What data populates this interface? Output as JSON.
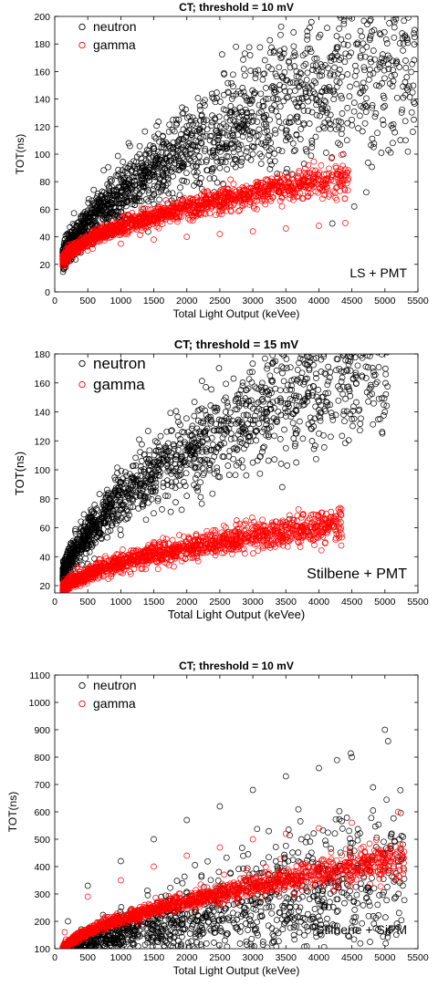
{
  "chart_data": [
    {
      "type": "scatter",
      "title": "CT; threshold = 10 mV",
      "xlabel": "Total Light Output (keVee)",
      "ylabel": "TOT(ns)",
      "annotation": "LS + PMT",
      "xlim": [
        0,
        5500
      ],
      "ylim": [
        0,
        200
      ],
      "xticks": [
        0,
        500,
        1000,
        1500,
        2000,
        2500,
        3000,
        3500,
        4000,
        4500,
        5000,
        5500
      ],
      "yticks": [
        0,
        20,
        40,
        60,
        80,
        100,
        120,
        140,
        160,
        180,
        200
      ],
      "legend_position": "top-left",
      "series": [
        {
          "name": "neutron",
          "color": "#000000",
          "marker": "circle",
          "trend": {
            "a": 2.2,
            "b": 0.5,
            "c": 2.2,
            "xmax": 5450
          },
          "spread": {
            "base": 4,
            "scale": 0.006
          },
          "count": 1700,
          "samples": [
            [
              200,
              28
            ],
            [
              500,
              42
            ],
            [
              1000,
              58
            ],
            [
              1500,
              70
            ],
            [
              2000,
              80
            ],
            [
              2500,
              90
            ],
            [
              3000,
              100
            ],
            [
              3500,
              110
            ],
            [
              4000,
              118
            ],
            [
              4500,
              125
            ],
            [
              5000,
              135
            ],
            [
              5450,
              185
            ]
          ]
        },
        {
          "name": "gamma",
          "color": "#ff0000",
          "marker": "circle",
          "trend": {
            "a": 5.5,
            "b": 0.3,
            "c": 3.5,
            "xmax": 4450
          },
          "spread": {
            "base": 2,
            "scale": 0.001
          },
          "count": 1500,
          "samples": [
            [
              150,
              20
            ],
            [
              500,
              30
            ],
            [
              1000,
              35
            ],
            [
              1500,
              38
            ],
            [
              2000,
              40
            ],
            [
              2500,
              42
            ],
            [
              3000,
              44
            ],
            [
              3500,
              46
            ],
            [
              4000,
              48
            ],
            [
              4400,
              50
            ]
          ]
        }
      ]
    },
    {
      "type": "scatter",
      "title": "CT; threshold = 15 mV",
      "xlabel": "Total Light Output (keVee)",
      "ylabel": "TOT(ns)",
      "annotation": "Stilbene + PMT",
      "xlim": [
        0,
        5500
      ],
      "ylim": [
        15,
        180
      ],
      "xticks": [
        0,
        500,
        1000,
        1500,
        2000,
        2500,
        3000,
        3500,
        4000,
        4500,
        5000,
        5500
      ],
      "yticks": [
        20,
        40,
        60,
        80,
        100,
        120,
        140,
        160,
        180
      ],
      "legend_position": "top-left",
      "series": [
        {
          "name": "neutron",
          "color": "#000000",
          "marker": "circle",
          "trend": {
            "a": 2.5,
            "b": 0.5,
            "c": 0.9,
            "xmax": 5050
          },
          "spread": {
            "base": 4,
            "scale": 0.005
          },
          "count": 1500,
          "samples": [
            [
              200,
              22
            ],
            [
              500,
              35
            ],
            [
              1000,
              55
            ],
            [
              1500,
              70
            ],
            [
              2000,
              82
            ],
            [
              2500,
              95
            ],
            [
              3000,
              105
            ],
            [
              3500,
              115
            ],
            [
              4000,
              125
            ],
            [
              4500,
              135
            ],
            [
              5000,
              140
            ]
          ]
        },
        {
          "name": "gamma",
          "color": "#ff0000",
          "marker": "circle",
          "trend": {
            "a": 4.2,
            "b": 0.3,
            "c": 2.5,
            "xmax": 4350
          },
          "spread": {
            "base": 2,
            "scale": 0.001
          },
          "count": 1400,
          "samples": [
            [
              150,
              18
            ],
            [
              500,
              30
            ],
            [
              1000,
              38
            ],
            [
              1500,
              42
            ],
            [
              2000,
              45
            ],
            [
              2500,
              48
            ],
            [
              3000,
              50
            ],
            [
              3500,
              52
            ],
            [
              4000,
              55
            ],
            [
              4300,
              60
            ]
          ]
        }
      ]
    },
    {
      "type": "scatter",
      "title": "CT; threshold = 10 mV",
      "xlabel": "Total Light Output (keVee)",
      "ylabel": "TOT(ns)",
      "annotation": "Stilbene + SiPM",
      "xlim": [
        0,
        5500
      ],
      "ylim": [
        100,
        1100
      ],
      "xticks": [
        0,
        500,
        1000,
        1500,
        2000,
        2500,
        3000,
        3500,
        4000,
        4500,
        5000,
        5500
      ],
      "yticks": [
        100,
        200,
        300,
        400,
        500,
        600,
        700,
        800,
        900,
        1000,
        1100
      ],
      "legend_position": "top-left",
      "series": [
        {
          "name": "neutron",
          "color": "#000000",
          "marker": "circle",
          "trend": {
            "a": 15,
            "b": 0.3,
            "c": 30,
            "xmax": 5300
          },
          "spread": {
            "base": 10,
            "scale": 0.03
          },
          "count": 1400,
          "samples": [
            [
              200,
              200
            ],
            [
              500,
              330
            ],
            [
              1000,
              420
            ],
            [
              1500,
              500
            ],
            [
              2000,
              570
            ],
            [
              2500,
              620
            ],
            [
              3000,
              680
            ],
            [
              3500,
              730
            ],
            [
              4000,
              760
            ],
            [
              4500,
              800
            ],
            [
              5000,
              900
            ]
          ]
        },
        {
          "name": "gamma",
          "color": "#ff0000",
          "marker": "circle",
          "trend": {
            "a": 23,
            "b": 0.3,
            "c": 25,
            "xmax": 5300
          },
          "spread": {
            "base": 6,
            "scale": 0.005
          },
          "count": 1400,
          "samples": [
            [
              150,
              160
            ],
            [
              500,
              290
            ],
            [
              1000,
              350
            ],
            [
              1500,
              400
            ],
            [
              2000,
              440
            ],
            [
              2500,
              470
            ],
            [
              3000,
              500
            ],
            [
              3500,
              520
            ],
            [
              4000,
              540
            ],
            [
              4500,
              560
            ],
            [
              5200,
              600
            ]
          ]
        }
      ]
    }
  ]
}
